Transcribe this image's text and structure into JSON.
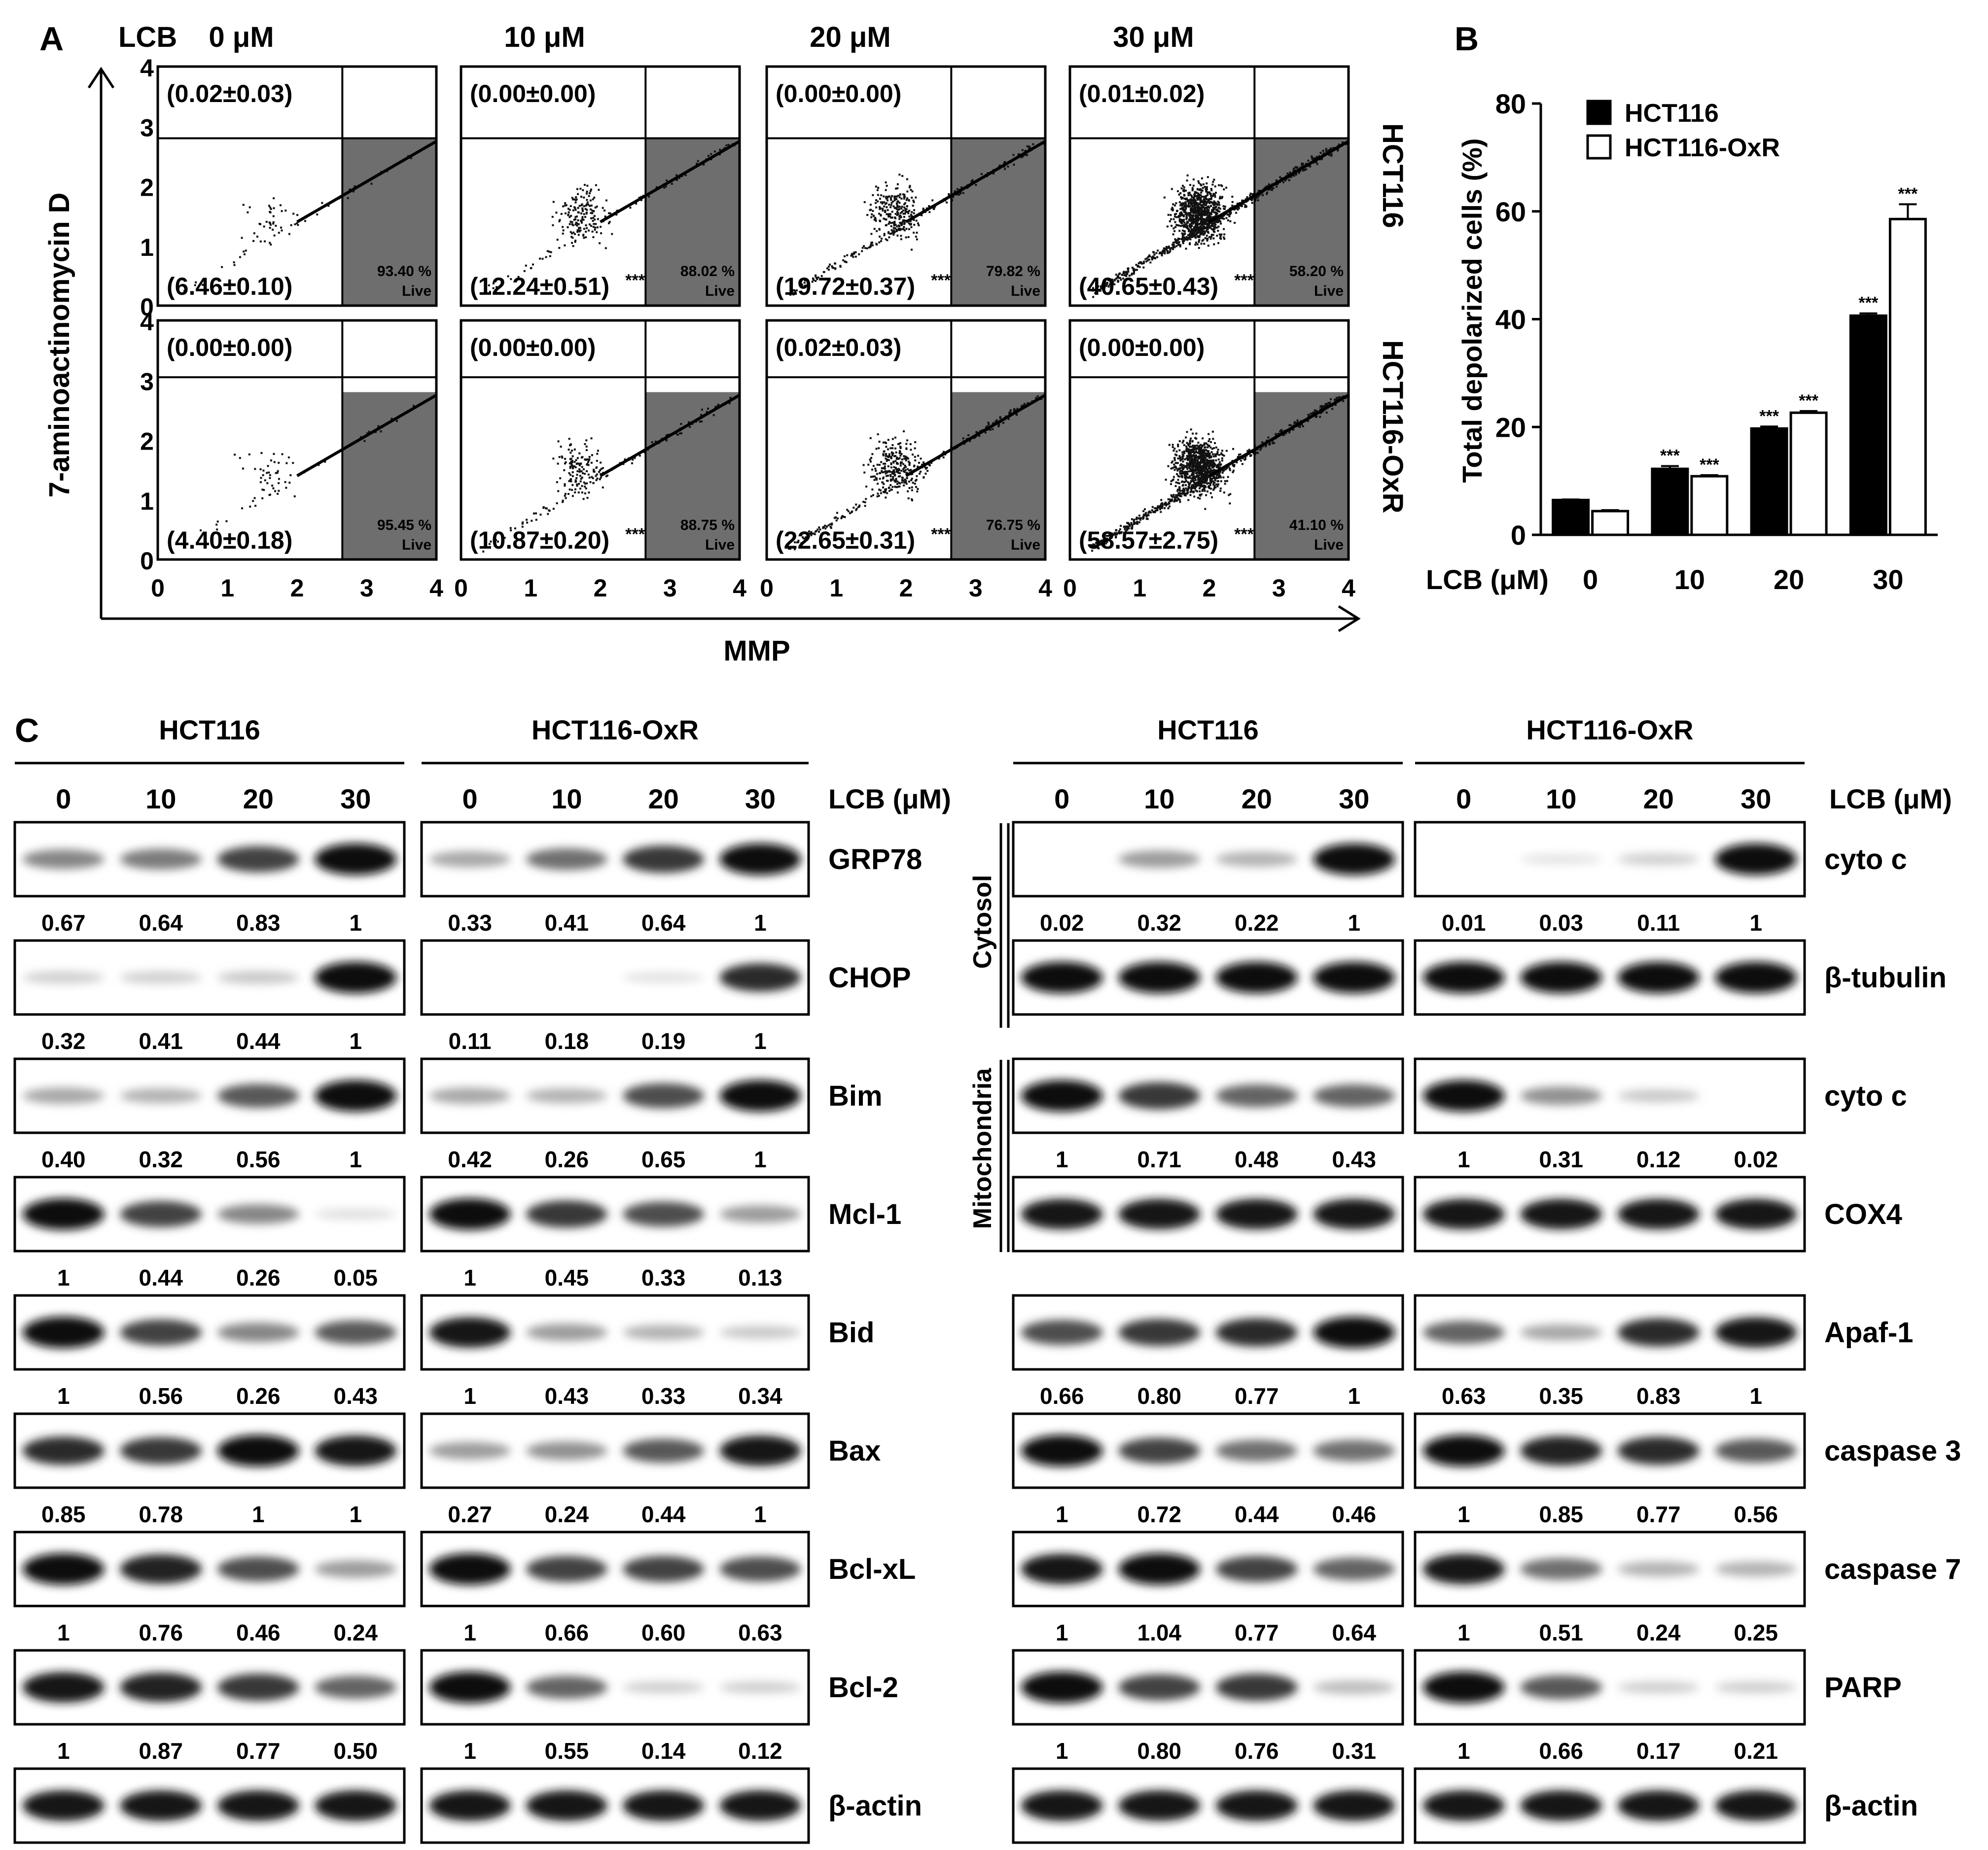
{
  "panel_letters": {
    "a": "A",
    "b": "B",
    "c": "C"
  },
  "panel_a": {
    "lcb_label": "LCB",
    "concentrations": [
      "0 μM",
      "10 μM",
      "20 μM",
      "30 μM"
    ],
    "y_axis_title": "7-aminoactinomycin D",
    "x_axis_title": "MMP",
    "ticks": [
      "0",
      "1",
      "2",
      "3",
      "4"
    ],
    "live_label": "Live",
    "row_labels": [
      "HCT116",
      "HCT116-OxR"
    ],
    "rows": [
      {
        "name": "HCT116",
        "cells": [
          {
            "upper": "(0.02±0.03)",
            "lower": "(6.46±0.10)",
            "sig": "",
            "live_pct": "93.40 %",
            "upper_gate": 2.8,
            "live_fraction": 93.4,
            "cloud": "small"
          },
          {
            "upper": "(0.00±0.00)",
            "lower": "(12.24±0.51)",
            "sig": "***",
            "live_pct": "88.02 %",
            "upper_gate": 2.8,
            "live_fraction": 88.02,
            "cloud": "medium"
          },
          {
            "upper": "(0.00±0.00)",
            "lower": "(19.72±0.37)",
            "sig": "***",
            "live_pct": "79.82 %",
            "upper_gate": 2.8,
            "live_fraction": 79.82,
            "cloud": "large"
          },
          {
            "upper": "(0.01±0.02)",
            "lower": "(40.65±0.43)",
            "sig": "***",
            "live_pct": "58.20 %",
            "upper_gate": 2.8,
            "live_fraction": 58.2,
            "cloud": "dense"
          }
        ]
      },
      {
        "name": "HCT116-OxR",
        "cells": [
          {
            "upper": "(0.00±0.00)",
            "lower": "(4.40±0.18)",
            "sig": "",
            "live_pct": "95.45 %",
            "upper_gate": 3.05,
            "live_fraction": 95.45,
            "cloud": "small"
          },
          {
            "upper": "(0.00±0.00)",
            "lower": "(10.87±0.20)",
            "sig": "***",
            "live_pct": "88.75 %",
            "upper_gate": 3.05,
            "live_fraction": 88.75,
            "cloud": "medium"
          },
          {
            "upper": "(0.02±0.03)",
            "lower": "(22.65±0.31)",
            "sig": "***",
            "live_pct": "76.75 %",
            "upper_gate": 3.05,
            "live_fraction": 76.75,
            "cloud": "large"
          },
          {
            "upper": "(0.00±0.00)",
            "lower": "(58.57±2.75)",
            "sig": "***",
            "live_pct": "41.10 %",
            "upper_gate": 3.05,
            "live_fraction": 41.1,
            "cloud": "dense"
          }
        ]
      }
    ]
  },
  "chart_data": {
    "type": "bar",
    "ylabel": "Total depolarized cells (%)",
    "xlabel": "LCB (μM)",
    "categories": [
      "0",
      "10",
      "20",
      "30"
    ],
    "ylim": [
      0,
      80
    ],
    "yticks": [
      "0",
      "20",
      "40",
      "60",
      "80"
    ],
    "legend_position": "top-left",
    "significance_label": "***",
    "series": [
      {
        "name": "HCT116",
        "fill": "#000000",
        "values": [
          6.46,
          12.24,
          19.72,
          40.65
        ],
        "errors": [
          0.1,
          0.51,
          0.37,
          0.43
        ],
        "sig": [
          "",
          "***",
          "***",
          "***"
        ]
      },
      {
        "name": "HCT116-OxR",
        "fill": "#ffffff",
        "values": [
          4.4,
          10.87,
          22.65,
          58.57
        ],
        "errors": [
          0.18,
          0.2,
          0.31,
          2.75
        ],
        "sig": [
          "",
          "***",
          "***",
          "***"
        ]
      }
    ]
  },
  "panel_c": {
    "lcb_label": "LCB (μM)",
    "lanes": [
      "0",
      "10",
      "20",
      "30"
    ],
    "left": {
      "groups": [
        "HCT116",
        "HCT116-OxR"
      ],
      "rows": [
        {
          "protein": "GRP78",
          "values": [
            [
              "0.67",
              "0.64",
              "0.83",
              "1"
            ],
            [
              "0.33",
              "0.41",
              "0.64",
              "1"
            ]
          ],
          "int": [
            [
              0.45,
              0.5,
              0.75,
              1.0
            ],
            [
              0.3,
              0.55,
              0.8,
              1.0
            ]
          ]
        },
        {
          "protein": "CHOP",
          "values": [
            [
              "0.32",
              "0.41",
              "0.44",
              "1"
            ],
            [
              "0.11",
              "0.18",
              "0.19",
              "1"
            ]
          ],
          "int": [
            [
              0.12,
              0.12,
              0.15,
              1.0
            ],
            [
              0.0,
              0.0,
              0.04,
              0.85
            ]
          ]
        },
        {
          "protein": "Bim",
          "values": [
            [
              "0.40",
              "0.32",
              "0.56",
              "1"
            ],
            [
              "0.42",
              "0.26",
              "0.65",
              "1"
            ]
          ],
          "int": [
            [
              0.3,
              0.25,
              0.65,
              1.0
            ],
            [
              0.3,
              0.25,
              0.7,
              1.0
            ]
          ]
        },
        {
          "protein": "Mcl-1",
          "values": [
            [
              "1",
              "0.44",
              "0.26",
              "0.05"
            ],
            [
              "1",
              "0.45",
              "0.33",
              "0.13"
            ]
          ],
          "int": [
            [
              1.0,
              0.75,
              0.45,
              0.05
            ],
            [
              1.0,
              0.8,
              0.7,
              0.35
            ]
          ]
        },
        {
          "protein": "Bid",
          "values": [
            [
              "1",
              "0.56",
              "0.26",
              "0.43"
            ],
            [
              "1",
              "0.43",
              "0.33",
              "0.34"
            ]
          ],
          "int": [
            [
              1.0,
              0.75,
              0.45,
              0.65
            ],
            [
              0.95,
              0.35,
              0.25,
              0.15
            ]
          ]
        },
        {
          "protein": "Bax",
          "values": [
            [
              "0.85",
              "0.78",
              "1",
              "1"
            ],
            [
              "0.27",
              "0.24",
              "0.44",
              "1"
            ]
          ],
          "int": [
            [
              0.85,
              0.8,
              1.0,
              0.95
            ],
            [
              0.35,
              0.4,
              0.65,
              0.95
            ]
          ]
        },
        {
          "protein": "Bcl-xL",
          "values": [
            [
              "1",
              "0.76",
              "0.46",
              "0.24"
            ],
            [
              "1",
              "0.66",
              "0.60",
              "0.63"
            ]
          ],
          "int": [
            [
              1.0,
              0.9,
              0.7,
              0.35
            ],
            [
              1.0,
              0.75,
              0.75,
              0.7
            ]
          ]
        },
        {
          "protein": "Bcl-2",
          "values": [
            [
              "1",
              "0.87",
              "0.77",
              "0.50"
            ],
            [
              "1",
              "0.55",
              "0.14",
              "0.12"
            ]
          ],
          "int": [
            [
              0.95,
              0.9,
              0.8,
              0.6
            ],
            [
              1.0,
              0.6,
              0.12,
              0.12
            ]
          ]
        },
        {
          "protein": "β-actin",
          "values": null,
          "int": [
            [
              0.95,
              0.95,
              0.95,
              0.95
            ],
            [
              0.95,
              0.95,
              0.95,
              0.95
            ]
          ]
        }
      ]
    },
    "right": {
      "groups": [
        "HCT116",
        "HCT116-OxR"
      ],
      "fraction_labels": [
        "Cytosol",
        "Mitochondria"
      ],
      "rows": [
        {
          "protein": "cyto c",
          "values": [
            [
              "0.02",
              "0.32",
              "0.22",
              "1"
            ],
            [
              "0.01",
              "0.03",
              "0.11",
              "1"
            ]
          ],
          "int": [
            [
              0.0,
              0.35,
              0.25,
              1.0
            ],
            [
              0.0,
              0.03,
              0.12,
              1.0
            ]
          ]
        },
        {
          "protein": "β-tubulin",
          "values": null,
          "int": [
            [
              1.0,
              1.0,
              1.0,
              1.0
            ],
            [
              1.0,
              1.0,
              1.0,
              1.0
            ]
          ]
        },
        {
          "protein": "cyto c",
          "values": [
            [
              "1",
              "0.71",
              "0.48",
              "0.43"
            ],
            [
              "1",
              "0.31",
              "0.12",
              "0.02"
            ]
          ],
          "int": [
            [
              1.0,
              0.8,
              0.6,
              0.6
            ],
            [
              1.0,
              0.4,
              0.15,
              0.0
            ]
          ]
        },
        {
          "protein": "COX4",
          "values": null,
          "int": [
            [
              0.95,
              0.95,
              0.95,
              0.95
            ],
            [
              0.95,
              0.95,
              0.95,
              0.95
            ]
          ]
        },
        {
          "protein": "Apaf-1",
          "values": [
            [
              "0.66",
              "0.80",
              "0.77",
              "1"
            ],
            [
              "0.63",
              "0.35",
              "0.83",
              "1"
            ]
          ],
          "int": [
            [
              0.7,
              0.8,
              0.85,
              1.0
            ],
            [
              0.6,
              0.3,
              0.85,
              0.95
            ]
          ]
        },
        {
          "protein": "caspase 3",
          "values": [
            [
              "1",
              "0.72",
              "0.44",
              "0.46"
            ],
            [
              "1",
              "0.85",
              "0.77",
              "0.56"
            ]
          ],
          "int": [
            [
              1.0,
              0.75,
              0.55,
              0.55
            ],
            [
              1.0,
              0.9,
              0.85,
              0.65
            ]
          ]
        },
        {
          "protein": "caspase 7",
          "values": [
            [
              "1",
              "1.04",
              "0.77",
              "0.64"
            ],
            [
              "1",
              "0.51",
              "0.24",
              "0.25"
            ]
          ],
          "int": [
            [
              0.95,
              1.0,
              0.75,
              0.6
            ],
            [
              0.95,
              0.55,
              0.25,
              0.25
            ]
          ]
        },
        {
          "protein": "PARP",
          "values": [
            [
              "1",
              "0.80",
              "0.76",
              "0.31"
            ],
            [
              "1",
              "0.66",
              "0.17",
              "0.21"
            ]
          ],
          "int": [
            [
              1.0,
              0.75,
              0.8,
              0.2
            ],
            [
              1.0,
              0.65,
              0.12,
              0.12
            ]
          ]
        },
        {
          "protein": "β-actin",
          "values": null,
          "int": [
            [
              0.95,
              0.95,
              0.95,
              0.95
            ],
            [
              0.95,
              0.95,
              0.95,
              0.95
            ]
          ]
        }
      ]
    }
  }
}
